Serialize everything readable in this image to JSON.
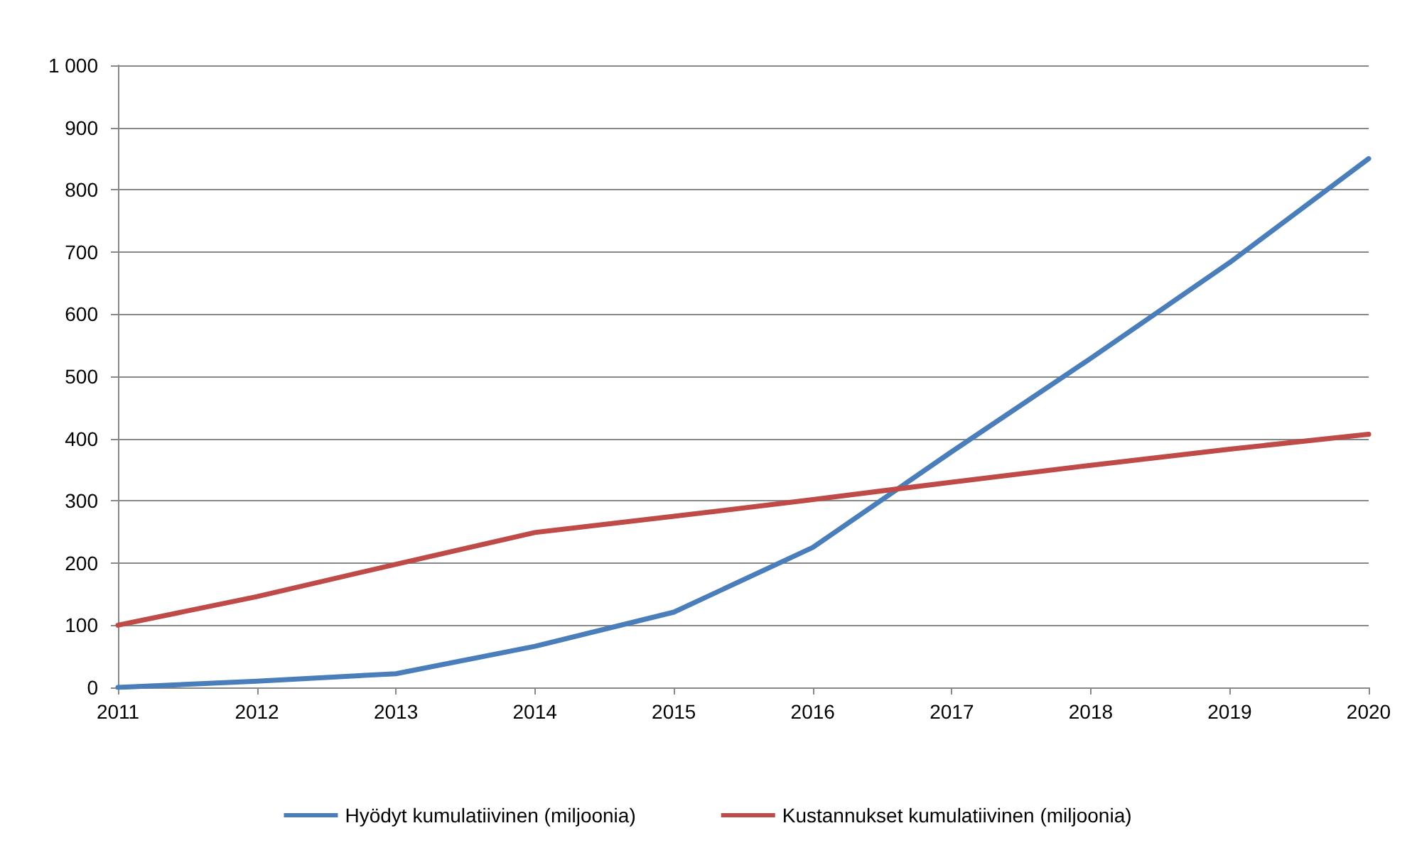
{
  "chart_data": {
    "type": "line",
    "categories": [
      "2011",
      "2012",
      "2013",
      "2014",
      "2015",
      "2016",
      "2017",
      "2018",
      "2019",
      "2020"
    ],
    "series": [
      {
        "name": "Hyödyt kumulatiivinen (miljoonia)",
        "color": "#4a7ebb",
        "values": [
          0,
          10,
          22,
          66,
          121,
          225,
          379,
          529,
          683,
          850
        ]
      },
      {
        "name": "Kustannukset kumulatiivinen (miljoonia)",
        "color": "#be4b48",
        "values": [
          100,
          146,
          198,
          249,
          275,
          302,
          330,
          357,
          383,
          407
        ]
      }
    ],
    "ylim": [
      0,
      1000
    ],
    "yticks": [
      0,
      100,
      200,
      300,
      400,
      500,
      600,
      700,
      800,
      900,
      {
        "value": 1000,
        "label": "1 000"
      }
    ],
    "grid": "y",
    "legend": "bottom",
    "marker": "none",
    "line_style": "solid"
  }
}
